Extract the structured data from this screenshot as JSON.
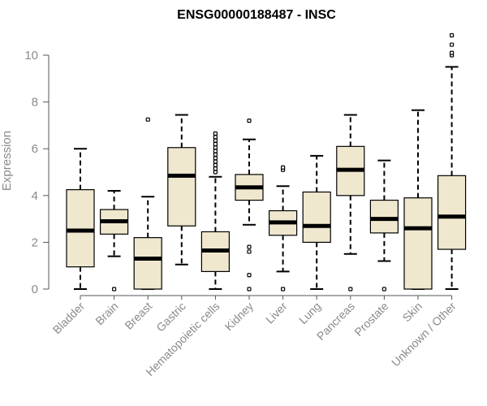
{
  "chart_data": {
    "type": "boxplot",
    "title": "ENSG00000188487 - INSC",
    "xlabel": "",
    "ylabel": "Expression",
    "ylim": [
      0,
      11
    ],
    "yticks": [
      0,
      2,
      4,
      6,
      8,
      10
    ],
    "grid": false,
    "legend": "none",
    "box_color": "#efe8cf",
    "categories": [
      "Bladder",
      "Brain",
      "Breast",
      "Gastric",
      "Hematopoietic cells",
      "Kidney",
      "Liver",
      "Lung",
      "Pancreas",
      "Prostate",
      "Skin",
      "Unknown / Other"
    ],
    "boxes": [
      {
        "whisker_low": 0.0,
        "q1": 0.95,
        "median": 2.5,
        "q3": 4.25,
        "whisker_high": 6.0,
        "outliers": []
      },
      {
        "whisker_low": 1.4,
        "q1": 2.35,
        "median": 2.9,
        "q3": 3.4,
        "whisker_high": 4.2,
        "outliers": [
          0.0
        ]
      },
      {
        "whisker_low": 0.0,
        "q1": 0.0,
        "median": 1.3,
        "q3": 2.2,
        "whisker_high": 3.95,
        "outliers": [
          7.25
        ]
      },
      {
        "whisker_low": 1.05,
        "q1": 2.7,
        "median": 4.85,
        "q3": 6.05,
        "whisker_high": 7.45,
        "outliers": []
      },
      {
        "whisker_low": 0.0,
        "q1": 0.75,
        "median": 1.65,
        "q3": 2.45,
        "whisker_high": 4.8,
        "outliers": [
          5.0,
          5.15,
          5.3,
          5.45,
          5.6,
          5.75,
          5.9,
          6.05,
          6.2,
          6.35,
          6.5,
          6.65
        ]
      },
      {
        "whisker_low": 2.75,
        "q1": 3.8,
        "median": 4.35,
        "q3": 4.9,
        "whisker_high": 6.4,
        "outliers": [
          7.2,
          1.8,
          1.6,
          0.6,
          0.0
        ]
      },
      {
        "whisker_low": 0.75,
        "q1": 2.3,
        "median": 2.85,
        "q3": 3.35,
        "whisker_high": 4.4,
        "outliers": [
          5.1,
          5.2,
          0.0
        ]
      },
      {
        "whisker_low": 0.0,
        "q1": 2.0,
        "median": 2.7,
        "q3": 4.15,
        "whisker_high": 5.7,
        "outliers": []
      },
      {
        "whisker_low": 1.5,
        "q1": 4.0,
        "median": 5.1,
        "q3": 6.1,
        "whisker_high": 7.45,
        "outliers": [
          0.0
        ]
      },
      {
        "whisker_low": 1.2,
        "q1": 2.4,
        "median": 3.0,
        "q3": 3.8,
        "whisker_high": 5.5,
        "outliers": [
          0.0
        ]
      },
      {
        "whisker_low": 0.0,
        "q1": 0.0,
        "median": 2.6,
        "q3": 3.9,
        "whisker_high": 7.65,
        "outliers": []
      },
      {
        "whisker_low": 0.0,
        "q1": 1.7,
        "median": 3.1,
        "q3": 4.85,
        "whisker_high": 9.5,
        "outliers": [
          10.0,
          10.1,
          10.45,
          10.85
        ]
      }
    ]
  }
}
